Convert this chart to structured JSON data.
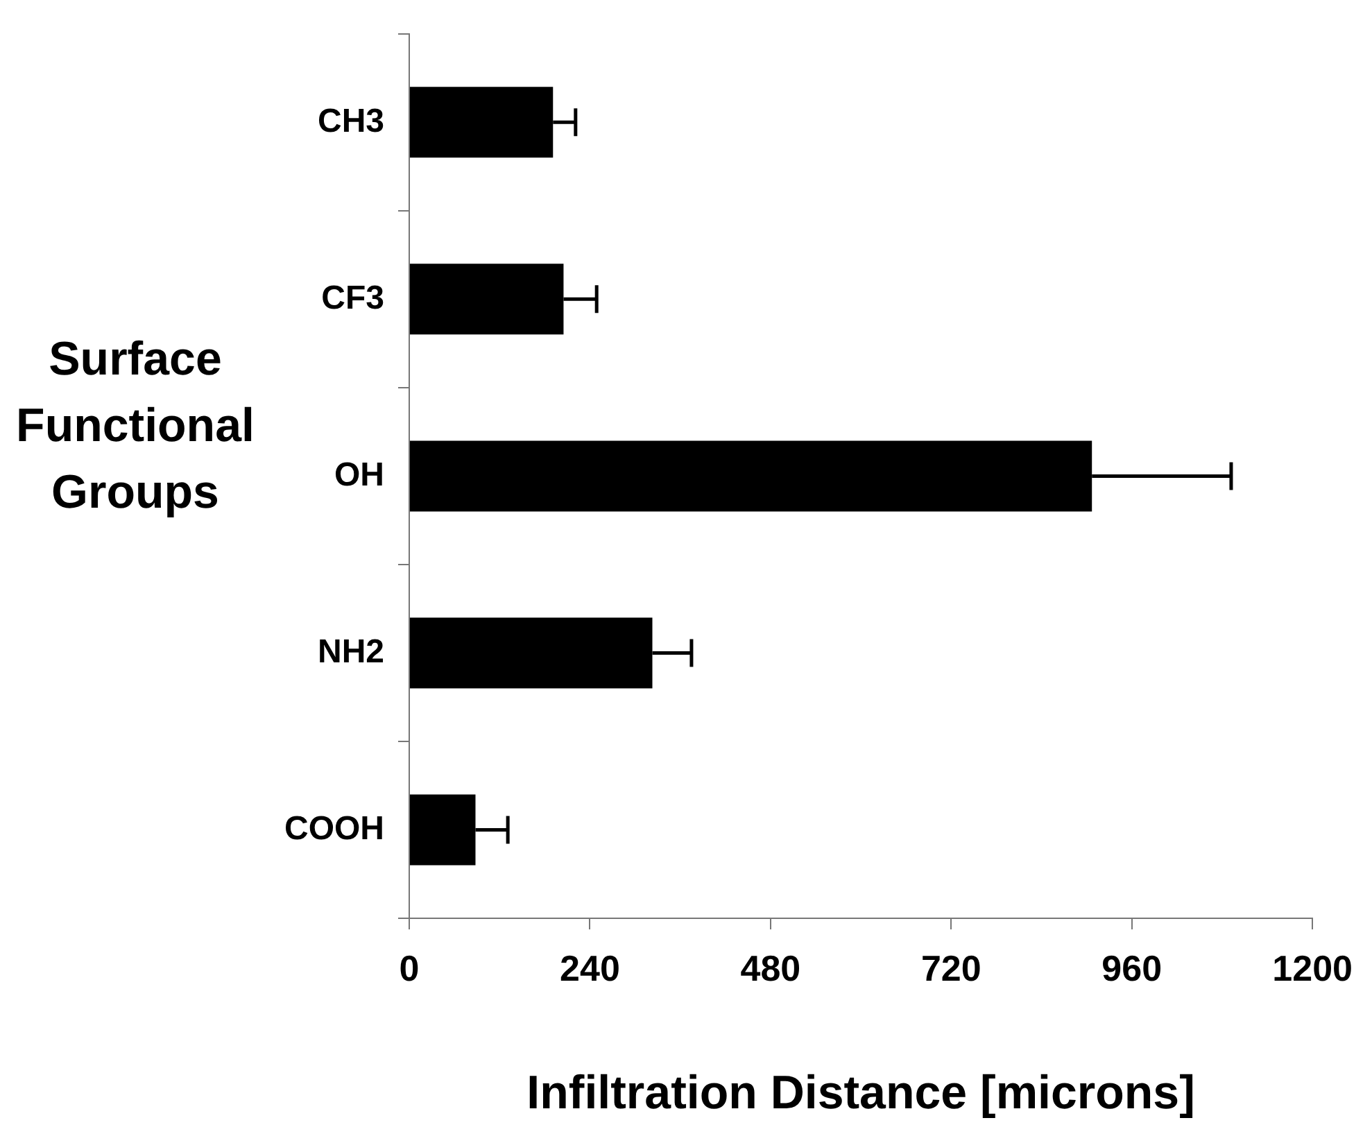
{
  "chart_data": {
    "type": "bar",
    "orientation": "horizontal",
    "xlabel": "Infiltration Distance [microns]",
    "ylabel": "Surface Functional Groups",
    "categories": [
      "CH3",
      "CF3",
      "OH",
      "NH2",
      "COOH"
    ],
    "values": [
      191,
      205,
      907,
      323,
      88
    ],
    "errors": [
      30,
      44,
      185,
      52,
      43
    ],
    "color": "#000000",
    "xlim": [
      0,
      1200
    ],
    "xticks": [
      0,
      240,
      480,
      720,
      960,
      1200
    ],
    "grid": false,
    "legend": false
  }
}
